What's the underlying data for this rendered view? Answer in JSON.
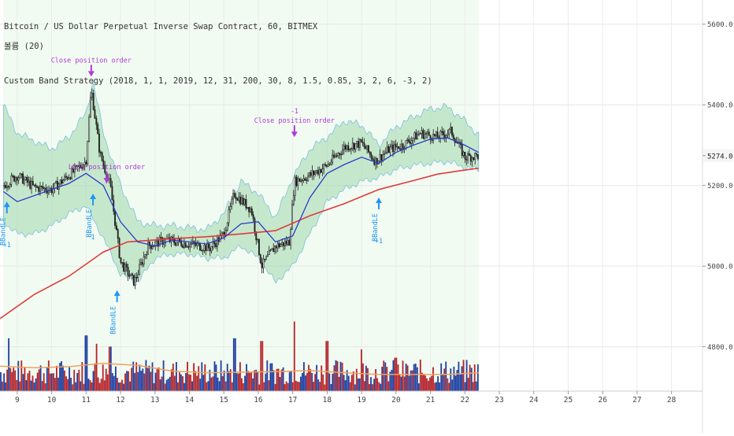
{
  "legend": {
    "symbol_line": "Bitcoin / US Dollar Perpetual Inverse Swap Contract, 60, BITMEX",
    "indicator_line": "볼륨 (20)",
    "strategy_line": "Custom Band Strategy (2018, 1, 1, 2019, 12, 31, 200, 30, 8, 1.5, 0.85, 3, 2, 6, -3, 2)"
  },
  "price_scale": {
    "ticks": [
      "5600.0",
      "5400.0",
      "5274.0",
      "5200.0",
      "5000.0",
      "4800.0"
    ],
    "current_price": "5274.0",
    "range": [
      4690,
      5660
    ]
  },
  "time_axis": {
    "ticks": [
      "9",
      "10",
      "11",
      "12",
      "13",
      "14",
      "15",
      "16",
      "17",
      "18",
      "19",
      "20",
      "21",
      "22",
      "23",
      "24",
      "25",
      "26",
      "27",
      "28"
    ]
  },
  "colors": {
    "background": "#ffffff",
    "band_fill": "#8fd19e",
    "band_edge": "#7fbfdc",
    "ma_blue": "#2b3cc4",
    "ma_red": "#e23a3a",
    "volume_blue": "#1f3fa0",
    "volume_red": "#b3242a",
    "volume_ma": "#f0a060",
    "signal_blue": "#2196f3",
    "signal_purple": "#b03bd6",
    "shaded_bg": "#e9f9e9",
    "current_price_box": "#f5f5f5"
  },
  "chart_data": {
    "type": "candlestick",
    "title": "Bitcoin / US Dollar Perpetual Inverse Swap Contract, 60, BITMEX",
    "indicators": [
      "Custom Band Strategy",
      "볼륨 (20)"
    ],
    "x_unit": "day of month",
    "x_range": [
      8.5,
      28.9
    ],
    "ylim": [
      4690,
      5660
    ],
    "trend_points": [
      {
        "x": 8.6,
        "y": 5200
      },
      {
        "x": 9.0,
        "y": 5225
      },
      {
        "x": 9.5,
        "y": 5195
      },
      {
        "x": 10.0,
        "y": 5190
      },
      {
        "x": 10.5,
        "y": 5225
      },
      {
        "x": 11.0,
        "y": 5260
      },
      {
        "x": 11.15,
        "y": 5440
      },
      {
        "x": 11.4,
        "y": 5280
      },
      {
        "x": 11.7,
        "y": 5200
      },
      {
        "x": 12.0,
        "y": 5010
      },
      {
        "x": 12.4,
        "y": 4960
      },
      {
        "x": 12.8,
        "y": 5050
      },
      {
        "x": 13.3,
        "y": 5065
      },
      {
        "x": 14.0,
        "y": 5055
      },
      {
        "x": 14.6,
        "y": 5045
      },
      {
        "x": 15.0,
        "y": 5080
      },
      {
        "x": 15.3,
        "y": 5180
      },
      {
        "x": 15.8,
        "y": 5140
      },
      {
        "x": 16.1,
        "y": 5000
      },
      {
        "x": 16.5,
        "y": 5050
      },
      {
        "x": 16.9,
        "y": 5060
      },
      {
        "x": 17.05,
        "y": 5210
      },
      {
        "x": 17.5,
        "y": 5225
      },
      {
        "x": 18.0,
        "y": 5250
      },
      {
        "x": 18.5,
        "y": 5295
      },
      {
        "x": 19.0,
        "y": 5305
      },
      {
        "x": 19.4,
        "y": 5260
      },
      {
        "x": 19.8,
        "y": 5290
      },
      {
        "x": 20.2,
        "y": 5300
      },
      {
        "x": 20.7,
        "y": 5330
      },
      {
        "x": 21.2,
        "y": 5320
      },
      {
        "x": 21.6,
        "y": 5335
      },
      {
        "x": 22.0,
        "y": 5270
      },
      {
        "x": 22.4,
        "y": 5274
      }
    ],
    "series": [
      {
        "values": [
          [
            8.5,
            4870
          ],
          [
            9.5,
            4930
          ],
          [
            10.5,
            4975
          ],
          [
            11.5,
            5035
          ],
          [
            12.2,
            5060
          ],
          [
            13.5,
            5068
          ],
          [
            14.5,
            5073
          ],
          [
            15.5,
            5080
          ],
          [
            16.5,
            5088
          ],
          [
            17.5,
            5125
          ],
          [
            18.5,
            5155
          ],
          [
            19.5,
            5190
          ],
          [
            20.5,
            5212
          ],
          [
            21.2,
            5228
          ],
          [
            21.9,
            5237
          ],
          [
            22.4,
            5243
          ]
        ]
      },
      {
        "values": [
          [
            8.6,
            5185
          ],
          [
            9.0,
            5160
          ],
          [
            9.5,
            5175
          ],
          [
            10.0,
            5190
          ],
          [
            10.5,
            5205
          ],
          [
            11.0,
            5230
          ],
          [
            11.5,
            5200
          ],
          [
            12.0,
            5110
          ],
          [
            12.5,
            5060
          ],
          [
            13.0,
            5050
          ],
          [
            13.5,
            5065
          ],
          [
            14.0,
            5060
          ],
          [
            14.5,
            5055
          ],
          [
            15.0,
            5070
          ],
          [
            15.5,
            5105
          ],
          [
            16.0,
            5110
          ],
          [
            16.5,
            5060
          ],
          [
            17.0,
            5075
          ],
          [
            17.5,
            5170
          ],
          [
            18.0,
            5230
          ],
          [
            18.5,
            5252
          ],
          [
            19.0,
            5270
          ],
          [
            19.5,
            5255
          ],
          [
            20.0,
            5282
          ],
          [
            20.5,
            5300
          ],
          [
            21.0,
            5315
          ],
          [
            21.5,
            5318
          ],
          [
            22.0,
            5300
          ],
          [
            22.4,
            5282
          ]
        ]
      }
    ],
    "band": {
      "upper": [
        [
          8.6,
          5400
        ],
        [
          9.0,
          5330
        ],
        [
          9.5,
          5310
        ],
        [
          10.0,
          5290
        ],
        [
          10.5,
          5320
        ],
        [
          11.0,
          5380
        ],
        [
          11.2,
          5460
        ],
        [
          11.5,
          5330
        ],
        [
          12.0,
          5200
        ],
        [
          12.5,
          5110
        ],
        [
          13.0,
          5100
        ],
        [
          13.5,
          5100
        ],
        [
          14.0,
          5095
        ],
        [
          14.5,
          5090
        ],
        [
          15.0,
          5130
        ],
        [
          15.5,
          5210
        ],
        [
          16.0,
          5180
        ],
        [
          16.5,
          5120
        ],
        [
          17.0,
          5220
        ],
        [
          17.5,
          5290
        ],
        [
          18.0,
          5320
        ],
        [
          18.5,
          5360
        ],
        [
          19.0,
          5350
        ],
        [
          19.5,
          5300
        ],
        [
          20.0,
          5345
        ],
        [
          20.5,
          5370
        ],
        [
          21.0,
          5390
        ],
        [
          21.5,
          5395
        ],
        [
          22.0,
          5360
        ],
        [
          22.4,
          5325
        ]
      ],
      "lower": [
        [
          8.6,
          5110
        ],
        [
          9.0,
          5080
        ],
        [
          9.5,
          5080
        ],
        [
          10.0,
          5100
        ],
        [
          10.5,
          5130
        ],
        [
          11.0,
          5150
        ],
        [
          11.5,
          5070
        ],
        [
          12.0,
          4980
        ],
        [
          12.5,
          4960
        ],
        [
          13.0,
          5020
        ],
        [
          13.5,
          5030
        ],
        [
          14.0,
          5030
        ],
        [
          14.5,
          5020
        ],
        [
          15.0,
          5020
        ],
        [
          15.5,
          5050
        ],
        [
          16.0,
          5020
        ],
        [
          16.5,
          4960
        ],
        [
          17.0,
          5000
        ],
        [
          17.5,
          5080
        ],
        [
          18.0,
          5160
        ],
        [
          18.5,
          5190
        ],
        [
          19.0,
          5210
        ],
        [
          19.5,
          5220
        ],
        [
          20.0,
          5240
        ],
        [
          20.5,
          5250
        ],
        [
          21.0,
          5255
        ],
        [
          21.5,
          5260
        ],
        [
          22.0,
          5245
        ],
        [
          22.4,
          5240
        ]
      ]
    },
    "signals": [
      {
        "x": 8.7,
        "y": 5160,
        "label": "BBandLE",
        "qty": "+1"
      },
      {
        "x": 11.2,
        "y": 5180,
        "label": "BBandLE",
        "qty": "1"
      },
      {
        "x": 11.9,
        "y": 4940,
        "label": "BBandLE",
        "qty": ""
      },
      {
        "x": 19.5,
        "y": 5170,
        "label": "BBandLE",
        "qty": "+1"
      }
    ],
    "orders": [
      {
        "x": 11.15,
        "y": 5470,
        "label": "Close position order",
        "qty": ""
      },
      {
        "x": 11.6,
        "y": 5205,
        "label": "Long position order",
        "qty": ""
      },
      {
        "x": 17.05,
        "y": 5320,
        "label": "Close position order",
        "qty": "-1"
      }
    ],
    "volume": {
      "ylim": [
        0,
        1
      ],
      "ma": [
        [
          8.5,
          0.45
        ],
        [
          9.5,
          0.42
        ],
        [
          10.5,
          0.44
        ],
        [
          11.5,
          0.5
        ],
        [
          12.5,
          0.46
        ],
        [
          13.5,
          0.36
        ],
        [
          14.5,
          0.33
        ],
        [
          15.5,
          0.34
        ],
        [
          16.5,
          0.35
        ],
        [
          17.5,
          0.37
        ],
        [
          18.5,
          0.33
        ],
        [
          19.5,
          0.3
        ],
        [
          20.5,
          0.3
        ],
        [
          21.5,
          0.3
        ],
        [
          22.4,
          0.33
        ]
      ],
      "spikes": [
        [
          8.75,
          0.95
        ],
        [
          11.0,
          1.0
        ],
        [
          11.3,
          0.85
        ],
        [
          11.7,
          0.8
        ],
        [
          15.3,
          0.95
        ],
        [
          16.1,
          0.9
        ],
        [
          17.05,
          1.25
        ],
        [
          18.0,
          0.9
        ],
        [
          19.0,
          0.75
        ],
        [
          20.0,
          0.6
        ]
      ]
    }
  }
}
